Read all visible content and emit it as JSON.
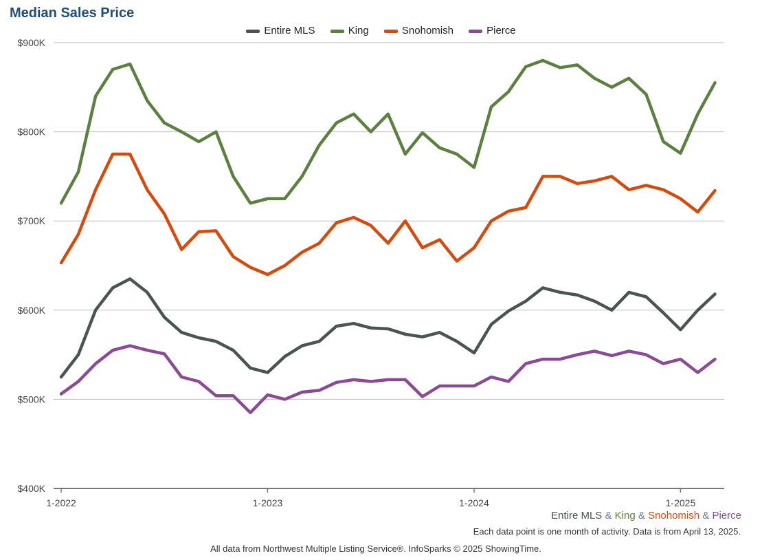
{
  "chart_data": {
    "type": "line",
    "title": "Median Sales Price",
    "y_ticks": [
      "$400K",
      "$500K",
      "$600K",
      "$700K",
      "$800K",
      "$900K"
    ],
    "y_tick_values": [
      400000,
      500000,
      600000,
      700000,
      800000,
      900000
    ],
    "ylim": [
      400000,
      900000
    ],
    "x_ticks": [
      "1-2022",
      "1-2023",
      "1-2024",
      "1-2025"
    ],
    "x_start": "2022-01",
    "months": [
      "2022-01",
      "2022-02",
      "2022-03",
      "2022-04",
      "2022-05",
      "2022-06",
      "2022-07",
      "2022-08",
      "2022-09",
      "2022-10",
      "2022-11",
      "2022-12",
      "2023-01",
      "2023-02",
      "2023-03",
      "2023-04",
      "2023-05",
      "2023-06",
      "2023-07",
      "2023-08",
      "2023-09",
      "2023-10",
      "2023-11",
      "2023-12",
      "2024-01",
      "2024-02",
      "2024-03",
      "2024-04",
      "2024-05",
      "2024-06",
      "2024-07",
      "2024-08",
      "2024-09",
      "2024-10",
      "2024-11",
      "2024-12",
      "2025-01",
      "2025-02",
      "2025-03"
    ],
    "grid": true,
    "legend_position": "top-center",
    "series": [
      {
        "name": "Entire MLS",
        "color": "#4a5552",
        "values": [
          525000,
          550000,
          600000,
          625000,
          635000,
          620000,
          592000,
          575000,
          569000,
          565000,
          555000,
          535000,
          530000,
          548000,
          560000,
          565000,
          582000,
          585000,
          580000,
          579000,
          573000,
          570000,
          575000,
          565000,
          552000,
          584000,
          599000,
          610000,
          625000,
          620000,
          617000,
          610000,
          600000,
          620000,
          615000,
          597000,
          578000,
          600000,
          618000
        ]
      },
      {
        "name": "King",
        "color": "#5b8040",
        "values": [
          720000,
          755000,
          840000,
          870000,
          876000,
          835000,
          810000,
          800000,
          789000,
          800000,
          750000,
          720000,
          725000,
          725000,
          750000,
          785000,
          810000,
          820000,
          800000,
          820000,
          775000,
          799000,
          782000,
          775000,
          760000,
          828000,
          845000,
          873000,
          880000,
          872000,
          875000,
          860000,
          850000,
          860000,
          842000,
          789000,
          776000,
          820000,
          855000
        ]
      },
      {
        "name": "Snohomish",
        "color": "#d64a0b",
        "values": [
          653000,
          685000,
          735000,
          775000,
          775000,
          735000,
          708000,
          668000,
          688000,
          689000,
          660000,
          648000,
          640000,
          650000,
          665000,
          675000,
          698000,
          704000,
          695000,
          675000,
          700000,
          670000,
          679000,
          655000,
          670000,
          700000,
          711000,
          715000,
          750000,
          750000,
          742000,
          745000,
          750000,
          735000,
          740000,
          735000,
          725000,
          710000,
          734000
        ]
      },
      {
        "name": "Pierce",
        "color": "#8a4a96",
        "values": [
          506000,
          520000,
          540000,
          555000,
          560000,
          555000,
          551000,
          525000,
          520000,
          504000,
          504000,
          485000,
          505000,
          500000,
          508000,
          510000,
          519000,
          522000,
          520000,
          522000,
          522000,
          503000,
          515000,
          515000,
          515000,
          525000,
          520000,
          540000,
          545000,
          545000,
          550000,
          554000,
          549000,
          554000,
          550000,
          540000,
          545000,
          530000,
          545000
        ]
      }
    ]
  },
  "footer": {
    "series_names": [
      "Entire MLS",
      "King",
      "Snohomish",
      "Pierce"
    ],
    "amp": "&",
    "note": "Each data point is one month of activity. Data is from April 13, 2025.",
    "credit": "All data from Northwest Multiple Listing Service®. InfoSparks © 2025 ShowingTime."
  }
}
